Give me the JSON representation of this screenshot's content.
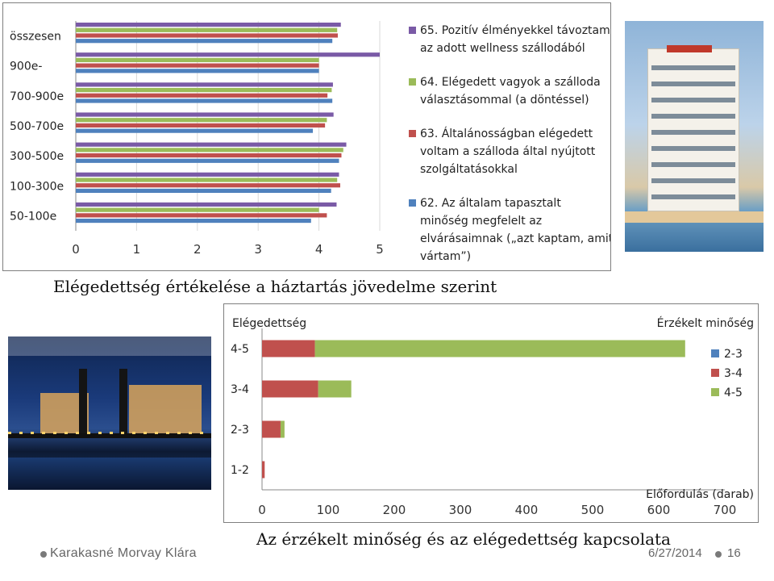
{
  "captions": {
    "chart1": "Elégedettség értékelése a háztartás jövedelme szerint",
    "chart2": "Az érzékelt minőség és az elégedettség kapcsolata"
  },
  "footer": {
    "author": "Karakasné Morvay Klára",
    "date": "6/27/2014",
    "page": "16"
  },
  "chart_data": [
    {
      "type": "bar",
      "orientation": "horizontal",
      "title": "",
      "xlabel": "",
      "ylabel": "",
      "xlim": [
        0,
        5
      ],
      "ticks": [
        0,
        1,
        2,
        3,
        4,
        5
      ],
      "grid": true,
      "legend_position": "right",
      "categories": [
        "összesen",
        "900e-",
        "700-900e",
        "500-700e",
        "300-500e",
        "100-300e",
        "50-100e"
      ],
      "series": [
        {
          "name": "65. Pozitív élményekkel távoztam az adott wellness szállodából",
          "color": "#7a5aa6",
          "values": [
            4.36,
            5.0,
            4.23,
            4.24,
            4.45,
            4.33,
            4.29
          ]
        },
        {
          "name": "64. Elégedett vagyok a szálloda választásommal (a döntéssel)",
          "color": "#9bbb59",
          "values": [
            4.3,
            4.0,
            4.21,
            4.13,
            4.4,
            4.3,
            4.0
          ]
        },
        {
          "name": "63. Általánosságban elégedett voltam a szálloda által nyújtott szolgáltatásokkal",
          "color": "#c0504d",
          "values": [
            4.31,
            4.0,
            4.14,
            4.1,
            4.37,
            4.35,
            4.13
          ]
        },
        {
          "name": "62. Az általam tapasztalt minőség megfelelt az elvárásaimnak („azt kaptam, amit vártam”)",
          "color": "#4f81bd",
          "values": [
            4.22,
            4.0,
            4.22,
            3.9,
            4.33,
            4.2,
            3.87
          ]
        }
      ]
    },
    {
      "type": "bar",
      "orientation": "horizontal",
      "stacked": true,
      "title": "",
      "xlabel": "Előfordulás (darab)",
      "ylabel": "Elégedettség",
      "legend_title": "Érzékelt minőség",
      "xlim": [
        0,
        700
      ],
      "ticks": [
        0,
        100,
        200,
        300,
        400,
        500,
        600,
        700
      ],
      "grid": false,
      "legend_position": "right",
      "categories": [
        "4-5",
        "3-4",
        "2-3",
        "1-2"
      ],
      "series": [
        {
          "name": "2-3",
          "color": "#4f81bd",
          "values": [
            0,
            0,
            0,
            0
          ]
        },
        {
          "name": "3-4",
          "color": "#c0504d",
          "values": [
            80,
            85,
            28,
            4
          ]
        },
        {
          "name": "4-5",
          "color": "#9bbb59",
          "values": [
            560,
            50,
            6,
            0
          ]
        }
      ]
    }
  ]
}
